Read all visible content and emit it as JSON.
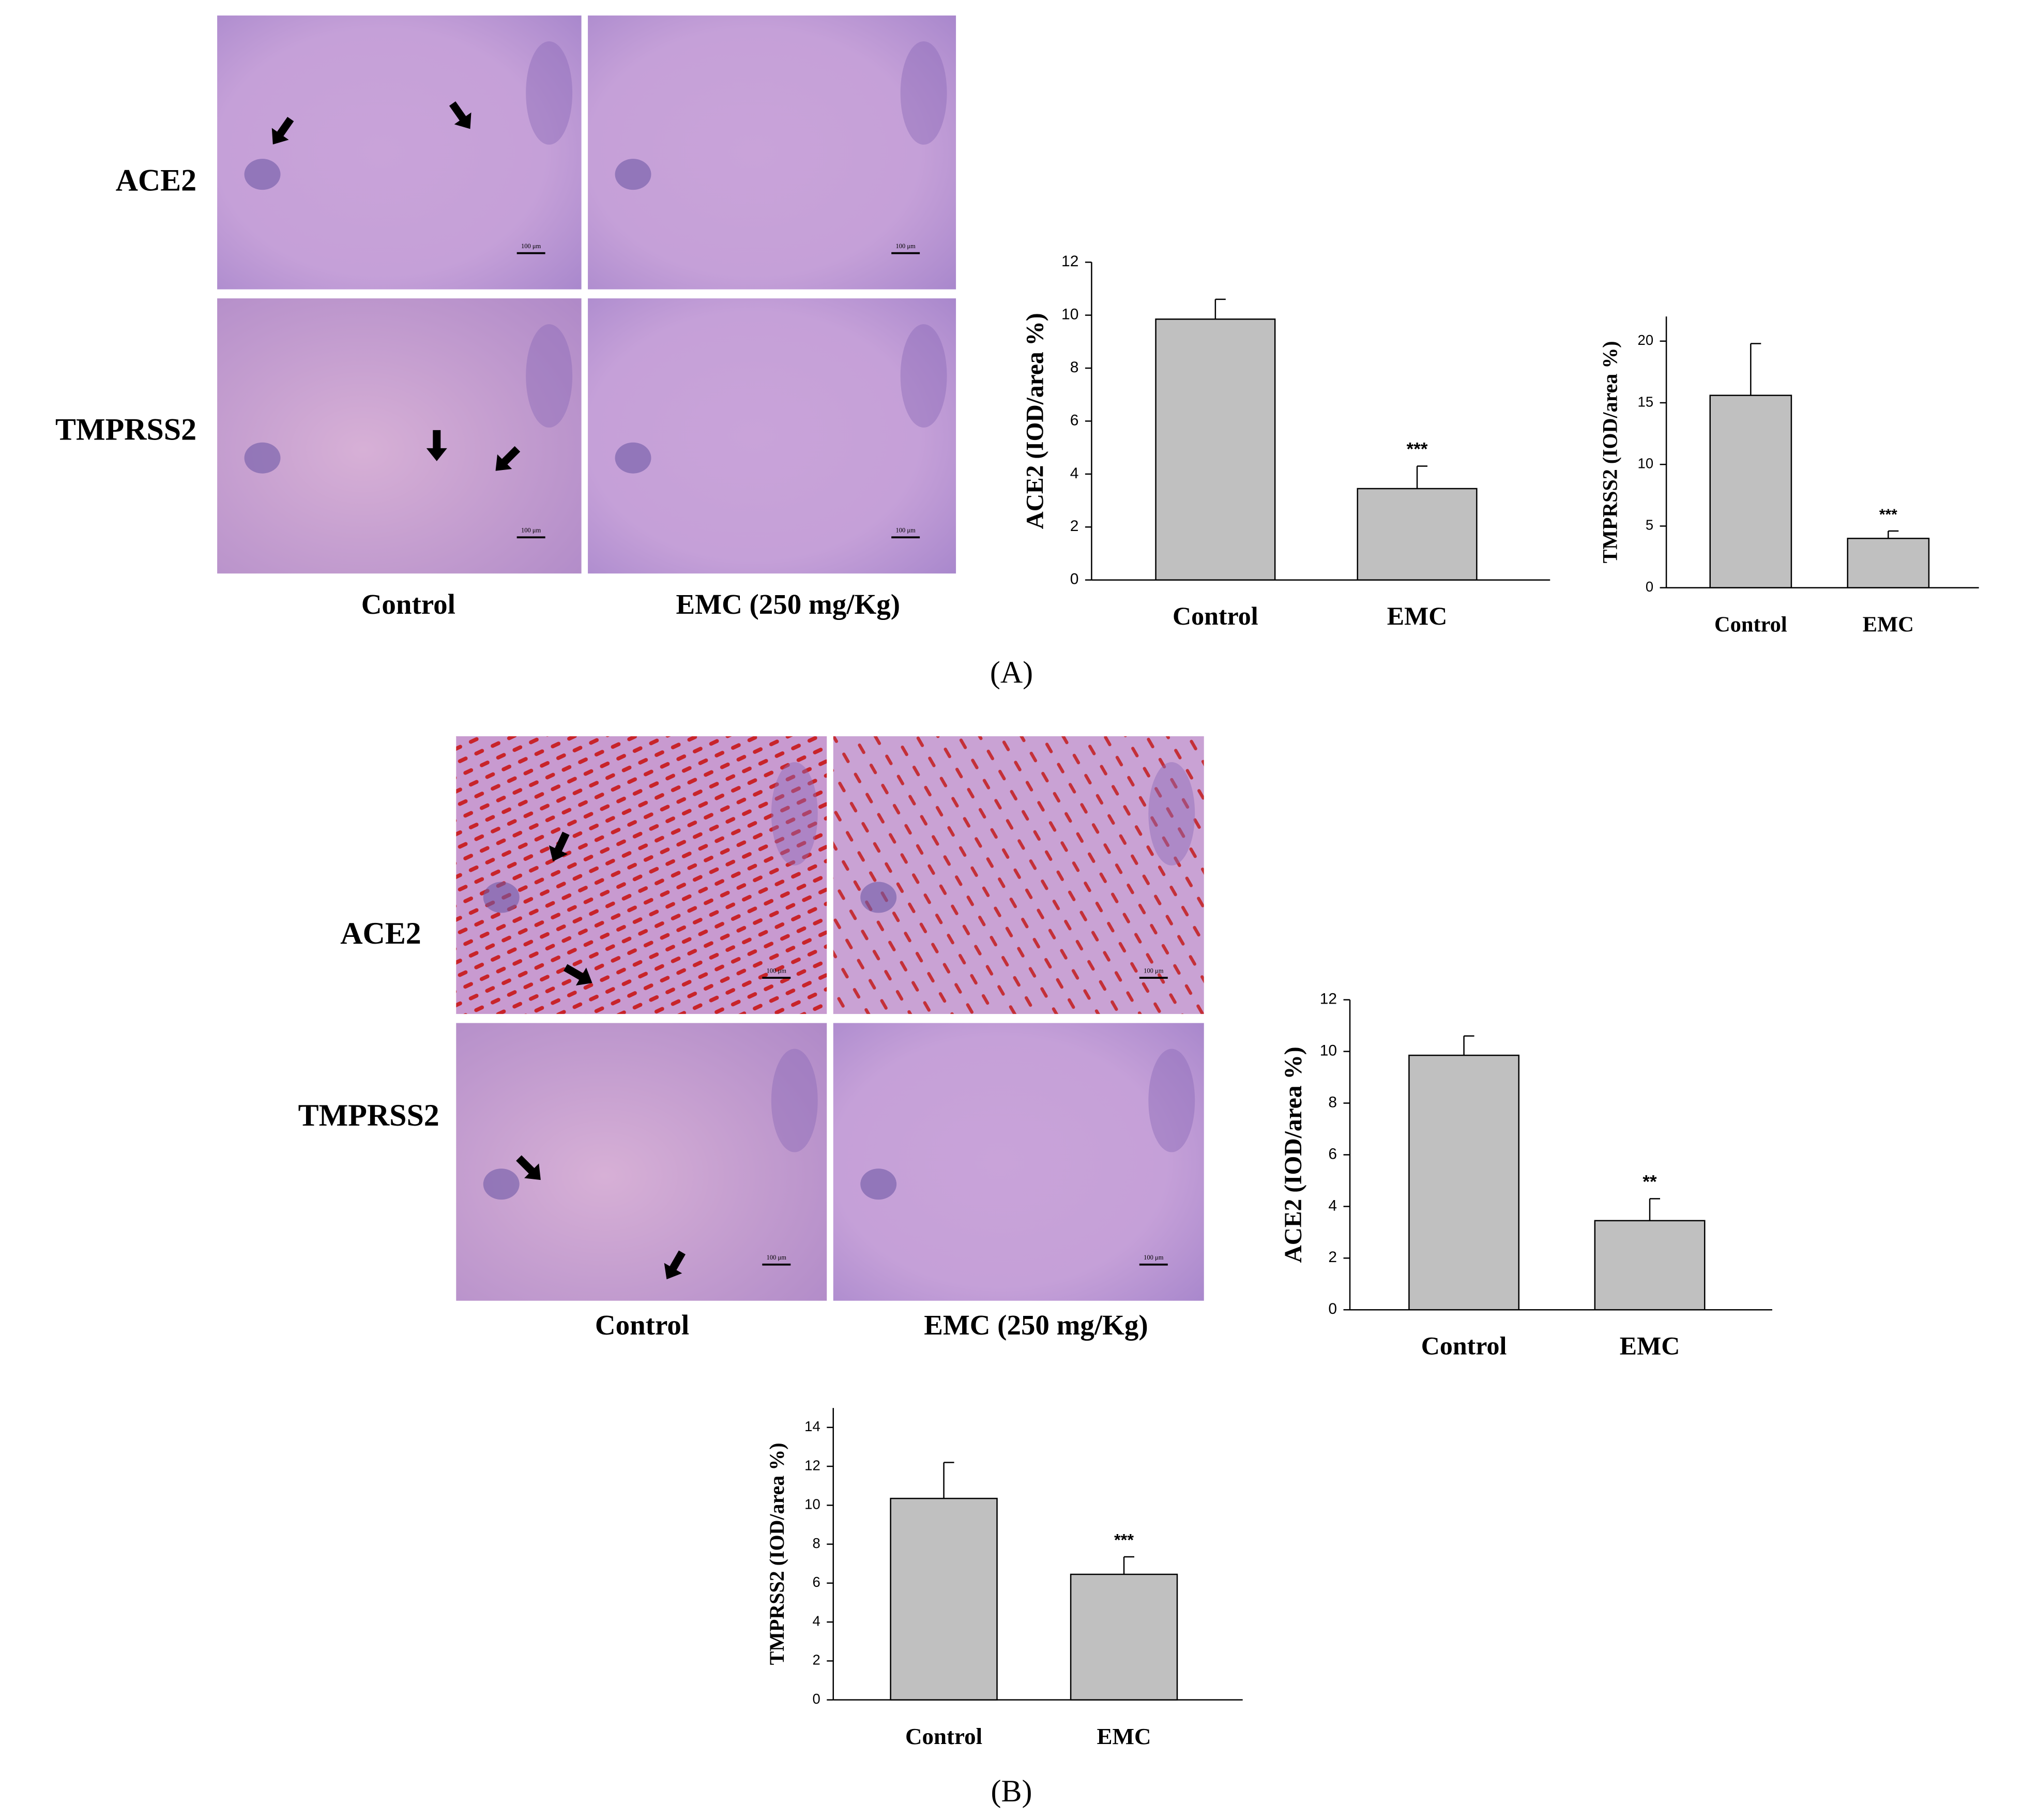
{
  "figure": {
    "panels": [
      {
        "label": "(A)",
        "rows": [
          "ACE2",
          "TMPRSS2"
        ],
        "columns": [
          "Control",
          "EMC (250 mg/Kg)"
        ]
      },
      {
        "label": "(B)",
        "rows": [
          "ACE2",
          "TMPRSS2"
        ],
        "columns": [
          "Control",
          "EMC (250 mg/Kg)"
        ]
      }
    ],
    "scale_bar": "100 μm"
  },
  "chart_data": [
    {
      "type": "bar",
      "y_label": "ACE2 (IOD/area %)",
      "categories": [
        "Control",
        "EMC"
      ],
      "values": [
        9.85,
        3.45
      ],
      "errors": [
        0.75,
        0.85
      ],
      "annotations": [
        null,
        "***"
      ],
      "color": "#c0c0c0",
      "ylim": [
        0,
        12
      ],
      "yticks": [
        0,
        2,
        4,
        6,
        8,
        10,
        12
      ]
    },
    {
      "type": "bar",
      "y_label": "TMPRSS2 (IOD/area %)",
      "categories": [
        "Control",
        "EMC"
      ],
      "values": [
        15.6,
        4.0
      ],
      "errors": [
        4.2,
        0.6
      ],
      "annotations": [
        null,
        "***"
      ],
      "color": "#c0c0c0",
      "ylim": [
        0,
        22
      ],
      "yticks": [
        0,
        5,
        10,
        15,
        20
      ]
    },
    {
      "type": "bar",
      "y_label": "ACE2 (IOD/area %)",
      "categories": [
        "Control",
        "EMC"
      ],
      "values": [
        9.85,
        3.45
      ],
      "errors": [
        0.75,
        0.85
      ],
      "annotations": [
        null,
        "**"
      ],
      "color": "#c0c0c0",
      "ylim": [
        0,
        12
      ],
      "yticks": [
        0,
        2,
        4,
        6,
        8,
        10,
        12
      ]
    },
    {
      "type": "bar",
      "y_label": "TMPRSS2 (IOD/area %)",
      "categories": [
        "Control",
        "EMC"
      ],
      "values": [
        10.35,
        6.45
      ],
      "errors": [
        1.85,
        0.9
      ],
      "annotations": [
        null,
        "***"
      ],
      "color": "#c0c0c0",
      "ylim": [
        0,
        15
      ],
      "yticks": [
        0,
        2,
        4,
        6,
        8,
        10,
        12,
        14
      ]
    }
  ]
}
